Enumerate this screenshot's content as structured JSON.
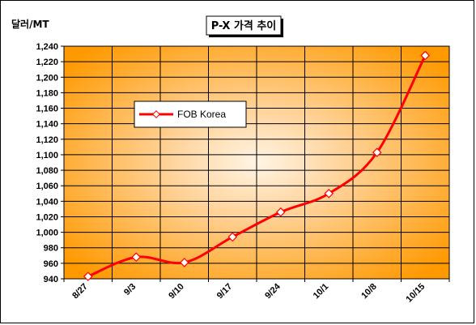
{
  "title": "P-X 가격 추이",
  "unit_label": "달러/MT",
  "colors": {
    "series_line": "#ff0000",
    "marker_fill": "#ffffff",
    "plot_center": "#fff5e6",
    "plot_edge": "#ff9900",
    "grid": "#000000"
  },
  "chart_data": {
    "type": "line",
    "title": "P-X 가격 추이",
    "ylabel": "달러/MT",
    "xlabel": "",
    "categories": [
      "8/27",
      "9/3",
      "9/10",
      "9/17",
      "9/24",
      "10/1",
      "10/8",
      "10/15"
    ],
    "series": [
      {
        "name": "FOB Korea",
        "values": [
          943,
          968,
          961,
          994,
          1026,
          1050,
          1103,
          1228
        ]
      }
    ],
    "ylim": [
      940,
      1240
    ],
    "yticks": [
      940,
      960,
      980,
      1000,
      1020,
      1040,
      1060,
      1080,
      1100,
      1120,
      1140,
      1160,
      1180,
      1200,
      1220,
      1240
    ],
    "grid": true,
    "legend": {
      "position": "upper-left",
      "entries": [
        "FOB Korea"
      ]
    }
  }
}
